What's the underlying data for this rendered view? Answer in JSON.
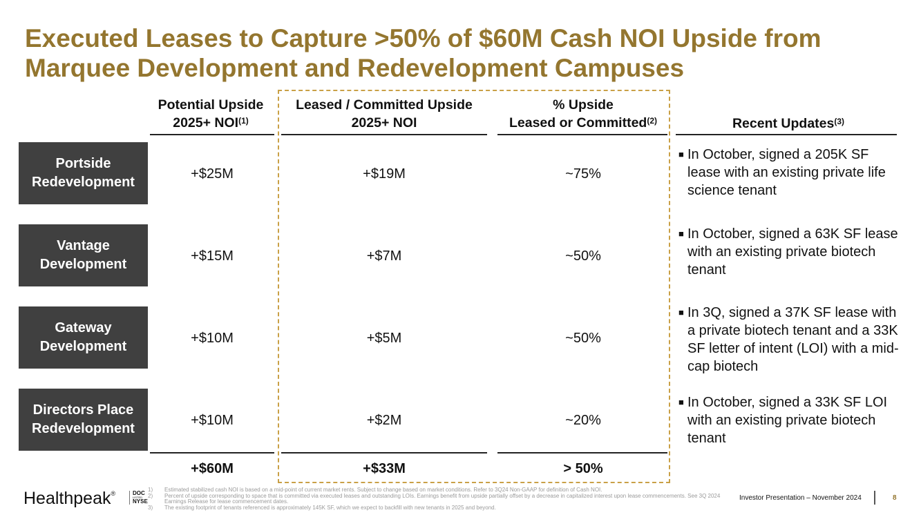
{
  "title": "Executed Leases to Capture >50% of $60M Cash NOI Upside from Marquee Development and Redevelopment Campuses",
  "columns": {
    "potential": {
      "line1": "Potential Upside",
      "line2": "2025+ NOI",
      "sup": "(1)"
    },
    "leased": {
      "line1": "Leased / Committed Upside",
      "line2": "2025+ NOI"
    },
    "pct": {
      "line1": "% Upside",
      "line2": "Leased or Committed",
      "sup": "(2)"
    },
    "updates": {
      "label": "Recent Updates",
      "sup": "(3)"
    }
  },
  "rows": [
    {
      "name1": "Portside",
      "name2": "Redevelopment",
      "potential": "+$25M",
      "leased": "+$19M",
      "pct": "~75%",
      "update": "In October, signed a 205K SF lease with an existing private life science tenant"
    },
    {
      "name1": "Vantage",
      "name2": "Development",
      "potential": "+$15M",
      "leased": "+$7M",
      "pct": "~50%",
      "update": "In October, signed a 63K SF lease with an existing private biotech tenant"
    },
    {
      "name1": "Gateway",
      "name2": "Development",
      "potential": "+$10M",
      "leased": "+$5M",
      "pct": "~50%",
      "update": "In 3Q, signed a 37K SF lease with a private biotech tenant and a 33K SF letter of intent (LOI) with a mid-cap biotech"
    },
    {
      "name1": "Directors Place",
      "name2": "Redevelopment",
      "potential": "+$10M",
      "leased": "+$2M",
      "pct": "~20%",
      "update": "In October, signed a 33K SF LOI with an existing private biotech tenant"
    }
  ],
  "totals": {
    "potential": "+$60M",
    "leased": "+$33M",
    "pct": "> 50%"
  },
  "footer": {
    "logo": "Healthpeak",
    "logo_mark": "®",
    "ticker1": "DOC",
    "ticker_mid": "LISTED",
    "ticker2": "NYSE",
    "footnotes": [
      {
        "n": "1)",
        "text": "Estimated stabilized cash NOI is based on a mid-point of current market rents. Subject to change based on market conditions. Refer to 3Q24 Non-GAAP for definition of Cash NOI."
      },
      {
        "n": "2)",
        "text": "Percent of upside corresponding to space that is committed via executed leases and outstanding LOIs. Earnings benefit from upside partially offset by a decrease in capitalized interest upon lease commencements. See 3Q 2024 Earnings Release for lease commencement dates."
      },
      {
        "n": "3)",
        "text": "The existing footprint of tenants referenced is approximately 145K SF, which we expect to backfill with new tenants in 2025 and beyond."
      }
    ],
    "presentation": "Investor Presentation – November 2024",
    "page": "8"
  }
}
